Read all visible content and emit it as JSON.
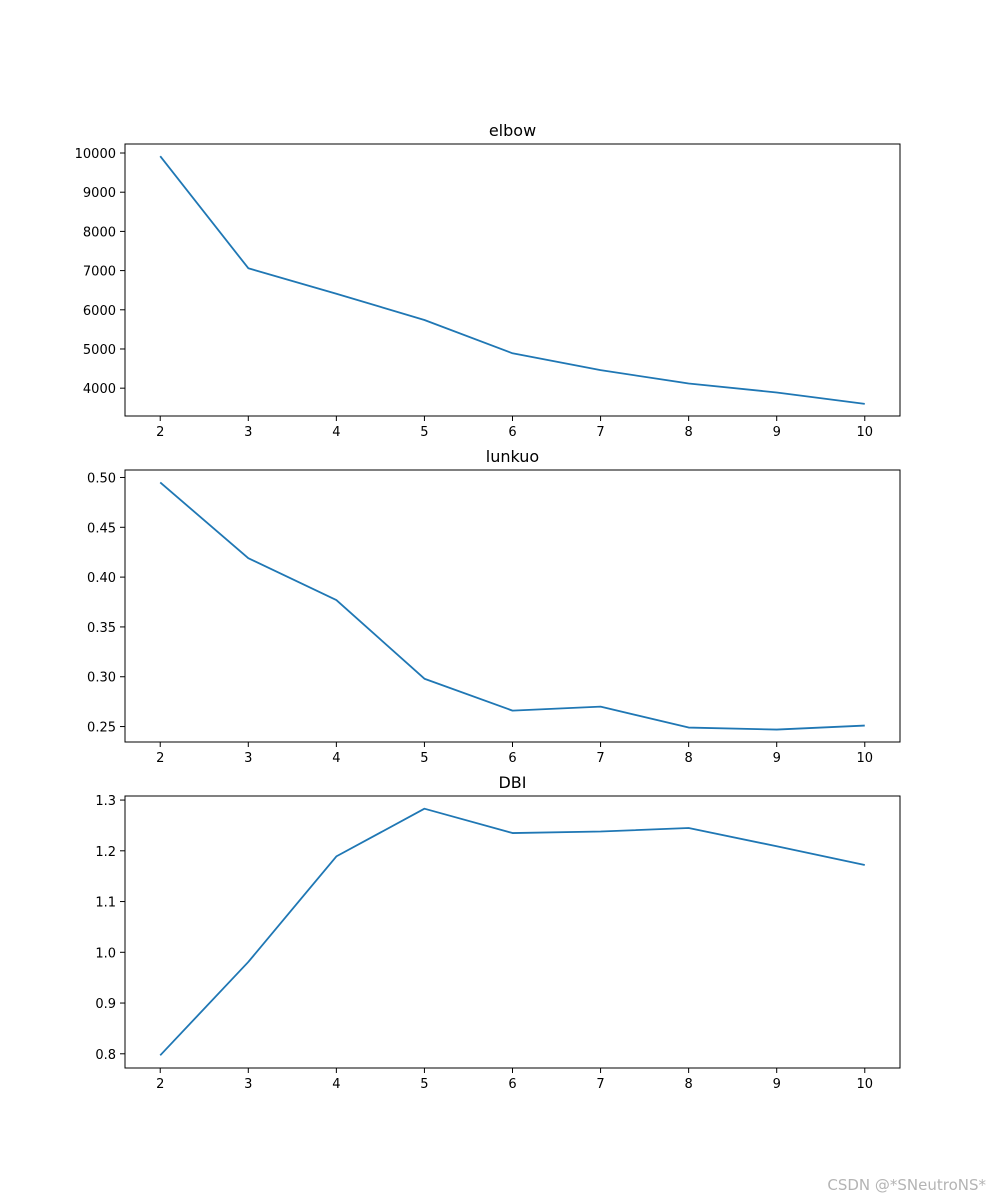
{
  "watermark": "CSDN @*SNeutroNS*",
  "chart_data": [
    {
      "type": "line",
      "title": "elbow",
      "xlabel": "",
      "ylabel": "",
      "color": "#1f77b4",
      "x": [
        2,
        3,
        4,
        5,
        6,
        7,
        8,
        9,
        10
      ],
      "y": [
        9920,
        7060,
        6410,
        5740,
        4890,
        4460,
        4120,
        3890,
        3600
      ],
      "xlim": [
        1.6,
        10.4
      ],
      "ylim": [
        3290,
        10230
      ],
      "xticks": [
        2,
        3,
        4,
        5,
        6,
        7,
        8,
        9,
        10
      ],
      "yticks": [
        4000,
        5000,
        6000,
        7000,
        8000,
        9000,
        10000
      ],
      "ytick_labels": [
        "4000",
        "5000",
        "6000",
        "7000",
        "8000",
        "9000",
        "10000"
      ],
      "grid": false,
      "legend": "none"
    },
    {
      "type": "line",
      "title": "lunkuo",
      "xlabel": "",
      "ylabel": "",
      "color": "#1f77b4",
      "x": [
        2,
        3,
        4,
        5,
        6,
        7,
        8,
        9,
        10
      ],
      "y": [
        0.495,
        0.419,
        0.377,
        0.298,
        0.266,
        0.27,
        0.249,
        0.247,
        0.251
      ],
      "xlim": [
        1.6,
        10.4
      ],
      "ylim": [
        0.2345,
        0.5075
      ],
      "xticks": [
        2,
        3,
        4,
        5,
        6,
        7,
        8,
        9,
        10
      ],
      "yticks": [
        0.25,
        0.3,
        0.35,
        0.4,
        0.45,
        0.5
      ],
      "ytick_labels": [
        "0.25",
        "0.30",
        "0.35",
        "0.40",
        "0.45",
        "0.50"
      ],
      "grid": false,
      "legend": "none"
    },
    {
      "type": "line",
      "title": "DBI",
      "xlabel": "",
      "ylabel": "",
      "color": "#1f77b4",
      "x": [
        2,
        3,
        4,
        5,
        6,
        7,
        8,
        9,
        10
      ],
      "y": [
        0.797,
        0.981,
        1.189,
        1.283,
        1.235,
        1.238,
        1.245,
        1.209,
        1.172
      ],
      "xlim": [
        1.6,
        10.4
      ],
      "ylim": [
        0.772,
        1.308
      ],
      "xticks": [
        2,
        3,
        4,
        5,
        6,
        7,
        8,
        9,
        10
      ],
      "yticks": [
        0.8,
        0.9,
        1.0,
        1.1,
        1.2,
        1.3
      ],
      "ytick_labels": [
        "0.8",
        "0.9",
        "1.0",
        "1.1",
        "1.2",
        "1.3"
      ],
      "grid": false,
      "legend": "none"
    }
  ]
}
